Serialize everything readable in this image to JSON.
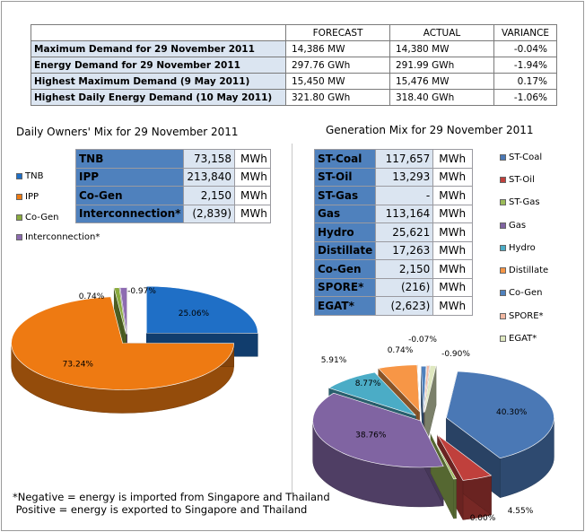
{
  "summary": {
    "headers": [
      "",
      "FORECAST",
      "ACTUAL",
      "VARIANCE"
    ],
    "rows": [
      {
        "label": "Maximum Demand for 29 November 2011",
        "forecast": "14,386 MW",
        "actual": "14,380 MW",
        "variance": "-0.04%"
      },
      {
        "label": "Energy Demand for 29 November 2011",
        "forecast": "297.76 GWh",
        "actual": "291.99 GWh",
        "variance": "-1.94%"
      },
      {
        "label": "Highest Maximum Demand (9 May 2011)",
        "forecast": "15,450 MW",
        "actual": "15,476 MW",
        "variance": "0.17%"
      },
      {
        "label": "Highest Daily Energy Demand (10 May 2011)",
        "forecast": "321.80 GWh",
        "actual": "318.40 GWh",
        "variance": "-1.06%"
      }
    ]
  },
  "owners_table": {
    "unit": "MWh",
    "rows": [
      {
        "name": "TNB",
        "value": "73,158"
      },
      {
        "name": "IPP",
        "value": "213,840"
      },
      {
        "name": "Co-Gen",
        "value": "2,150"
      },
      {
        "name": "Interconnection*",
        "value": "(2,839)"
      }
    ]
  },
  "generation_table": {
    "unit": "MWh",
    "rows": [
      {
        "name": "ST-Coal",
        "value": "117,657"
      },
      {
        "name": "ST-Oil",
        "value": "13,293"
      },
      {
        "name": "ST-Gas",
        "value": "-"
      },
      {
        "name": "Gas",
        "value": "113,164"
      },
      {
        "name": "Hydro",
        "value": "25,621"
      },
      {
        "name": "Distillate",
        "value": "17,263"
      },
      {
        "name": "Co-Gen",
        "value": "2,150"
      },
      {
        "name": "SPORE*",
        "value": "(216)"
      },
      {
        "name": "EGAT*",
        "value": "(2,623)"
      }
    ]
  },
  "chart_data": [
    {
      "type": "pie",
      "title": "Daily Owners' Mix for 29 November 2011",
      "legend_position": "left",
      "categories": [
        "TNB",
        "IPP",
        "Co-Gen",
        "Interconnection*"
      ],
      "values": [
        25.06,
        73.24,
        0.74,
        -0.97
      ],
      "labels": [
        "25.06%",
        "73.24%",
        "0.74%",
        "-0.97%"
      ],
      "colors": [
        "#1f6fc6",
        "#ee7a12",
        "#8aab3e",
        "#8d6bb1"
      ],
      "exploded": true,
      "style": "3d"
    },
    {
      "type": "pie",
      "title": "Generation Mix for 29 November 2011",
      "legend_position": "right",
      "categories": [
        "ST-Coal",
        "ST-Oil",
        "ST-Gas",
        "Gas",
        "Hydro",
        "Distillate",
        "Co-Gen",
        "SPORE*",
        "EGAT*"
      ],
      "values": [
        40.3,
        4.55,
        0.0,
        38.76,
        8.77,
        5.91,
        0.74,
        -0.07,
        -0.9
      ],
      "labels": [
        "40.30%",
        "4.55%",
        "0.00%",
        "38.76%",
        "8.77%",
        "5.91%",
        "0.74%",
        "-0.07%",
        "-0.90%"
      ],
      "colors": [
        "#4a78b5",
        "#c0403c",
        "#9bbb59",
        "#8064a2",
        "#4bacc6",
        "#f79646",
        "#4f81bd",
        "#f2b8a2",
        "#dfe8c0"
      ],
      "exploded": true,
      "style": "3d"
    }
  ],
  "footnote": {
    "line1": "*Negative = energy is imported from Singapore and Thailand",
    "line2": " Positive = energy is exported to Singapore and Thailand"
  }
}
